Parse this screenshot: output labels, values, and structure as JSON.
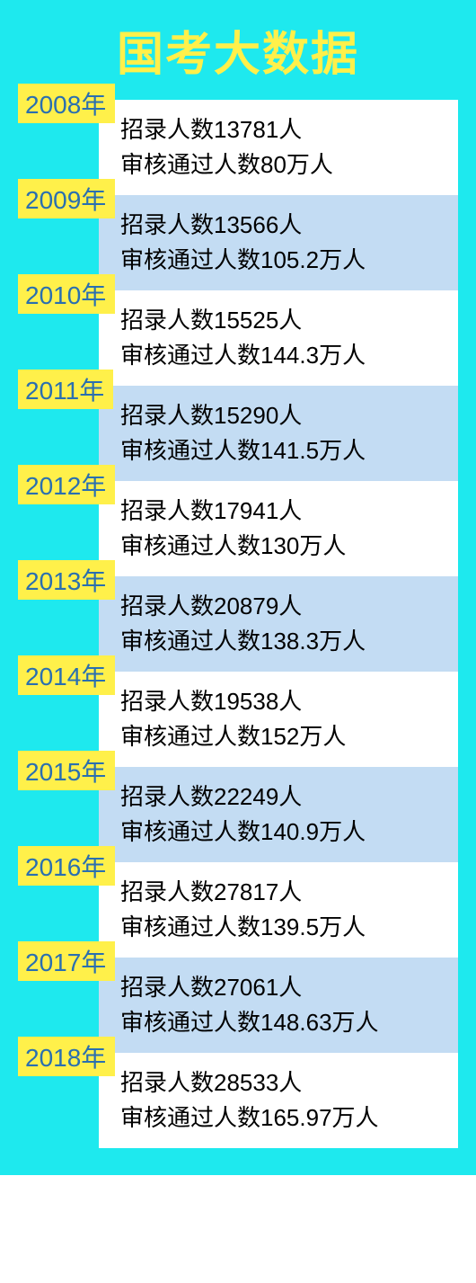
{
  "title": "国考大数据",
  "title_color": "#fff04a",
  "title_fontsize": 52,
  "background_color": "#1ee9ee",
  "row_bg_even": "#ffffff",
  "row_bg_odd": "#c3dcf3",
  "year_tag_bg": "#fff04a",
  "year_tag_color": "#2a6fb0",
  "year_tag_fontsize": 28,
  "text_color": "#000000",
  "text_fontsize": 26,
  "years": [
    {
      "year": "2008年",
      "line1": "招录人数13781人",
      "line2": "审核通过人数80万人"
    },
    {
      "year": "2009年",
      "line1": "招录人数13566人",
      "line2": "审核通过人数105.2万人"
    },
    {
      "year": "2010年",
      "line1": "招录人数15525人",
      "line2": "审核通过人数144.3万人"
    },
    {
      "year": "2011年",
      "line1": "招录人数15290人",
      "line2": "审核通过人数141.5万人"
    },
    {
      "year": "2012年",
      "line1": "招录人数17941人",
      "line2": "审核通过人数130万人"
    },
    {
      "year": "2013年",
      "line1": "招录人数20879人",
      "line2": "审核通过人数138.3万人"
    },
    {
      "year": "2014年",
      "line1": "招录人数19538人",
      "line2": "审核通过人数152万人"
    },
    {
      "year": "2015年",
      "line1": "招录人数22249人",
      "line2": "审核通过人数140.9万人"
    },
    {
      "year": "2016年",
      "line1": "招录人数27817人",
      "line2": "审核通过人数139.5万人"
    },
    {
      "year": "2017年",
      "line1": "招录人数27061人",
      "line2": "审核通过人数148.63万人"
    },
    {
      "year": "2018年",
      "line1": "招录人数28533人",
      "line2": "审核通过人数165.97万人"
    }
  ]
}
